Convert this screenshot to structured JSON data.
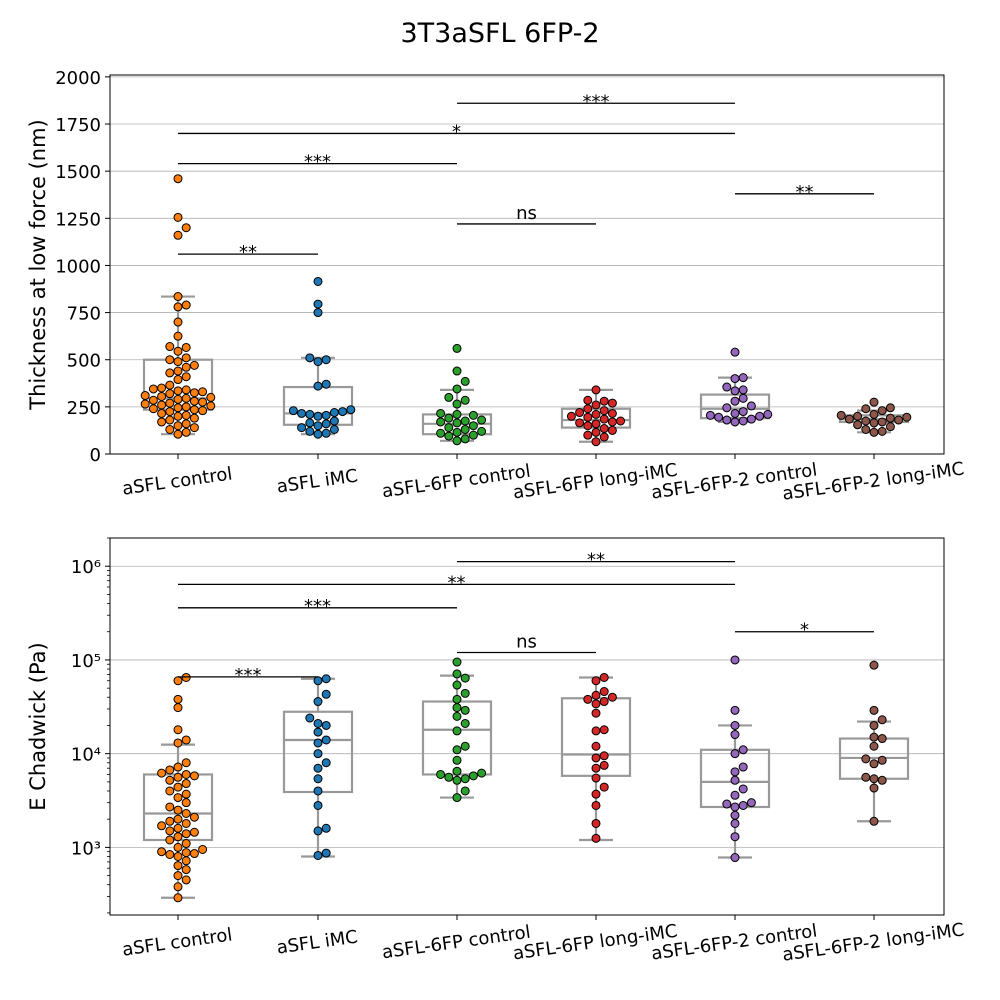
{
  "figure_title": "3T3aSFL 6FP-2",
  "chart_data": [
    {
      "type": "box-swarm",
      "ylabel": "Thickness at low force (nm)",
      "yscale": "linear",
      "ylim": [
        0,
        2010
      ],
      "yticks": [
        0,
        250,
        500,
        750,
        1000,
        1250,
        1500,
        1750,
        2000
      ],
      "ytick_labels": [
        "0",
        "250",
        "500",
        "750",
        "1000",
        "1250",
        "1500",
        "1750",
        "2000"
      ],
      "grid": "horizontal",
      "categories": [
        "aSFL control",
        "aSFL iMC",
        "aSFL-6FP control",
        "aSFL-6FP long-iMC",
        "aSFL-6FP-2 control",
        "aSFL-6FP-2 long-iMC"
      ],
      "colors": [
        "#ff7f0e",
        "#1f77b4",
        "#2ca02c",
        "#d62728",
        "#9467bd",
        "#8c564b"
      ],
      "boxes": [
        {
          "whisker_low": 105,
          "q1": 235,
          "median": 295,
          "q3": 500,
          "whisker_high": 835
        },
        {
          "whisker_low": 105,
          "q1": 155,
          "median": 215,
          "q3": 355,
          "whisker_high": 510
        },
        {
          "whisker_low": 70,
          "q1": 105,
          "median": 160,
          "q3": 210,
          "whisker_high": 340
        },
        {
          "whisker_low": 65,
          "q1": 140,
          "median": 180,
          "q3": 240,
          "whisker_high": 340
        },
        {
          "whisker_low": 170,
          "q1": 190,
          "median": 240,
          "q3": 315,
          "whisker_high": 405
        },
        {
          "whisker_low": 115,
          "q1": 170,
          "median": 185,
          "q3": 205,
          "whisker_high": 230
        }
      ],
      "points": [
        [
          1460,
          1255,
          1200,
          1160,
          835,
          790,
          780,
          700,
          625,
          570,
          565,
          545,
          510,
          500,
          490,
          470,
          460,
          440,
          430,
          410,
          395,
          365,
          350,
          345,
          340,
          335,
          330,
          325,
          320,
          310,
          305,
          300,
          295,
          290,
          285,
          280,
          275,
          270,
          265,
          260,
          255,
          250,
          245,
          240,
          235,
          230,
          225,
          215,
          205,
          200,
          190,
          180,
          170,
          160,
          150,
          140,
          130,
          115,
          105
        ],
        [
          915,
          795,
          750,
          510,
          500,
          490,
          370,
          360,
          235,
          230,
          225,
          220,
          215,
          210,
          205,
          200,
          175,
          165,
          160,
          150,
          140,
          130,
          120,
          110,
          105
        ],
        [
          560,
          440,
          385,
          345,
          300,
          285,
          265,
          215,
          210,
          205,
          190,
          180,
          175,
          170,
          165,
          150,
          140,
          130,
          120,
          115,
          110,
          100,
          95,
          80,
          70
        ],
        [
          340,
          285,
          280,
          270,
          260,
          240,
          230,
          220,
          215,
          210,
          200,
          195,
          185,
          175,
          170,
          165,
          160,
          150,
          135,
          125,
          115,
          100,
          90,
          65
        ],
        [
          540,
          405,
          400,
          355,
          340,
          335,
          295,
          280,
          255,
          245,
          225,
          215,
          210,
          205,
          200,
          195,
          185,
          180,
          175,
          170
        ],
        [
          275,
          245,
          240,
          230,
          210,
          205,
          200,
          195,
          190,
          185,
          180,
          175,
          170,
          165,
          155,
          145,
          130,
          120,
          115
        ]
      ],
      "significance": [
        {
          "from": 0,
          "to": 1,
          "y": 1060,
          "label": "**"
        },
        {
          "from": 2,
          "to": 3,
          "y": 1220,
          "label": "ns"
        },
        {
          "from": 4,
          "to": 5,
          "y": 1380,
          "label": "**"
        },
        {
          "from": 0,
          "to": 2,
          "y": 1540,
          "label": "***"
        },
        {
          "from": 0,
          "to": 4,
          "y": 1700,
          "label": "*"
        },
        {
          "from": 2,
          "to": 4,
          "y": 1860,
          "label": "***"
        }
      ]
    },
    {
      "type": "box-swarm",
      "ylabel": "E Chadwick (Pa)",
      "yscale": "log",
      "ylim": [
        190,
        2000000
      ],
      "yticks": [
        1000,
        10000,
        100000,
        1000000
      ],
      "ytick_labels": [
        "10³",
        "10⁴",
        "10⁵",
        "10⁶"
      ],
      "grid": "horizontal",
      "categories": [
        "aSFL control",
        "aSFL iMC",
        "aSFL-6FP control",
        "aSFL-6FP long-iMC",
        "aSFL-6FP-2 control",
        "aSFL-6FP-2 long-iMC"
      ],
      "colors": [
        "#ff7f0e",
        "#1f77b4",
        "#2ca02c",
        "#d62728",
        "#9467bd",
        "#8c564b"
      ],
      "boxes": [
        {
          "whisker_low": 290,
          "q1": 1200,
          "median": 2300,
          "q3": 6000,
          "whisker_high": 12500
        },
        {
          "whisker_low": 800,
          "q1": 3900,
          "median": 14000,
          "q3": 28000,
          "whisker_high": 63000
        },
        {
          "whisker_low": 3400,
          "q1": 6000,
          "median": 18000,
          "q3": 36000,
          "whisker_high": 68000
        },
        {
          "whisker_low": 1200,
          "q1": 5800,
          "median": 9800,
          "q3": 39000,
          "whisker_high": 65000
        },
        {
          "whisker_low": 780,
          "q1": 2700,
          "median": 5000,
          "q3": 11000,
          "whisker_high": 20000
        },
        {
          "whisker_low": 1900,
          "q1": 5400,
          "median": 9000,
          "q3": 14500,
          "whisker_high": 22000
        }
      ],
      "points": [
        [
          65000,
          60000,
          38000,
          31000,
          18000,
          14000,
          13000,
          8000,
          7200,
          6700,
          6200,
          6000,
          5800,
          5600,
          5200,
          4800,
          4400,
          4000,
          3700,
          3400,
          3000,
          2700,
          2500,
          2300,
          2100,
          2000,
          1900,
          1800,
          1700,
          1600,
          1500,
          1450,
          1400,
          1300,
          1200,
          1100,
          1000,
          950,
          900,
          880,
          860,
          840,
          800,
          720,
          640,
          580,
          500,
          450,
          380,
          290
        ],
        [
          63000,
          60000,
          43000,
          36000,
          24000,
          21000,
          20000,
          17000,
          14000,
          13000,
          10000,
          8000,
          7000,
          5400,
          4000,
          2800,
          1600,
          1500,
          870,
          820
        ],
        [
          95000,
          71000,
          64000,
          54000,
          44000,
          38000,
          31000,
          29000,
          25000,
          21000,
          17500,
          12000,
          11000,
          8500,
          6500,
          6200,
          6000,
          5800,
          5600,
          5400,
          5200,
          4000,
          3400
        ],
        [
          65000,
          60000,
          46000,
          42000,
          40000,
          38000,
          36000,
          34000,
          27000,
          18000,
          17500,
          12000,
          9500,
          9000,
          7500,
          7000,
          5500,
          4400,
          3700,
          2800,
          1800,
          1250
        ],
        [
          100000,
          29000,
          20000,
          16000,
          11000,
          10000,
          7200,
          6400,
          5200,
          4200,
          3600,
          3000,
          2900,
          2800,
          2700,
          2200,
          1800,
          1300,
          780
        ],
        [
          88000,
          29000,
          23000,
          20000,
          15000,
          14500,
          12000,
          8800,
          8500,
          7800,
          5600,
          5400,
          5200,
          4300,
          1900
        ]
      ],
      "significance": [
        {
          "from": 0,
          "to": 1,
          "y": 66000,
          "label": "***"
        },
        {
          "from": 2,
          "to": 3,
          "y": 120000,
          "label": "ns"
        },
        {
          "from": 4,
          "to": 5,
          "y": 200000,
          "label": "*"
        },
        {
          "from": 0,
          "to": 2,
          "y": 360000,
          "label": "***"
        },
        {
          "from": 0,
          "to": 4,
          "y": 640000,
          "label": "**"
        },
        {
          "from": 2,
          "to": 4,
          "y": 1120000,
          "label": "**"
        }
      ]
    }
  ]
}
